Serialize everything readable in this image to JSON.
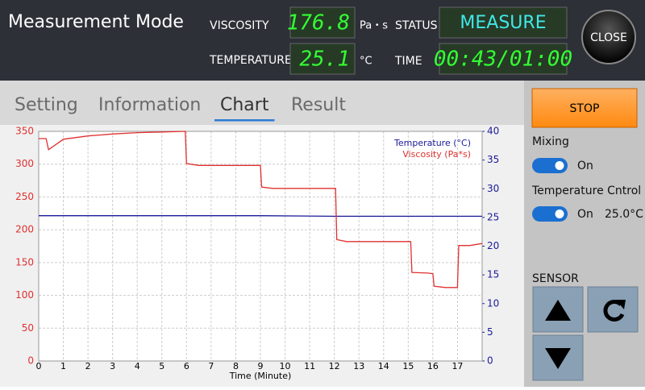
{
  "header": {
    "title": "Measurement Mode",
    "viscosity_label": "VISCOSITY",
    "viscosity_value": "176.8",
    "viscosity_unit": "Pa・s",
    "status_label": "STATUS",
    "status_value": "MEASURE",
    "temperature_label": "TEMPERATURE",
    "temperature_value": "25.1",
    "temperature_unit": "°C",
    "time_label": "TIME",
    "time_value": "00:43/01:00",
    "close": "CLOSE"
  },
  "tabs": {
    "items": [
      "Setting",
      "Information",
      "Chart",
      "Result"
    ],
    "active": 2
  },
  "side": {
    "stop": "STOP",
    "mixing_label": "Mixing",
    "mixing_state": "On",
    "temp_control_label": "Temperature Cntrol",
    "temp_control_state": "On",
    "temp_control_value": "25.0°C",
    "sensor_label": "SENSOR"
  },
  "chart_data": {
    "type": "line",
    "x_label": "Time (Minute)",
    "xlim": [
      0,
      18
    ],
    "xticks": [
      0,
      1,
      2,
      3,
      4,
      5,
      6,
      7,
      8,
      9,
      10,
      11,
      12,
      13,
      14,
      15,
      16,
      17
    ],
    "ylim": [
      0,
      350
    ],
    "yticks": [
      0,
      50,
      100,
      150,
      200,
      250,
      300,
      350
    ],
    "y2lim": [
      0,
      40
    ],
    "y2ticks": [
      0,
      5,
      10,
      15,
      20,
      25,
      30,
      35,
      40
    ],
    "grid": true,
    "legend": "upper right",
    "series": [
      {
        "name": "Temperature (°C)",
        "color": "#1a1a9a",
        "axis": "y2",
        "x": [
          0,
          3,
          6,
          9,
          12,
          15,
          18
        ],
        "values": [
          25.3,
          25.3,
          25.3,
          25.3,
          25.2,
          25.2,
          25.2
        ]
      },
      {
        "name": "Viscosity (Pa*s)",
        "color": "#e03030",
        "axis": "y",
        "x": [
          0,
          0.3,
          0.4,
          1,
          2,
          3,
          4,
          5,
          5.95,
          6.0,
          6.5,
          9.0,
          9.05,
          9.5,
          12.05,
          12.1,
          12.5,
          15.1,
          15.15,
          15.8,
          16.0,
          16.05,
          16.5,
          17.0,
          17.05,
          17.5,
          18
        ],
        "values": [
          339,
          339,
          322,
          338,
          343,
          346,
          348,
          349,
          350,
          301,
          298,
          298,
          265,
          263,
          263,
          185,
          182,
          182,
          135,
          134,
          133,
          114,
          112,
          112,
          176,
          176,
          179
        ]
      }
    ]
  }
}
